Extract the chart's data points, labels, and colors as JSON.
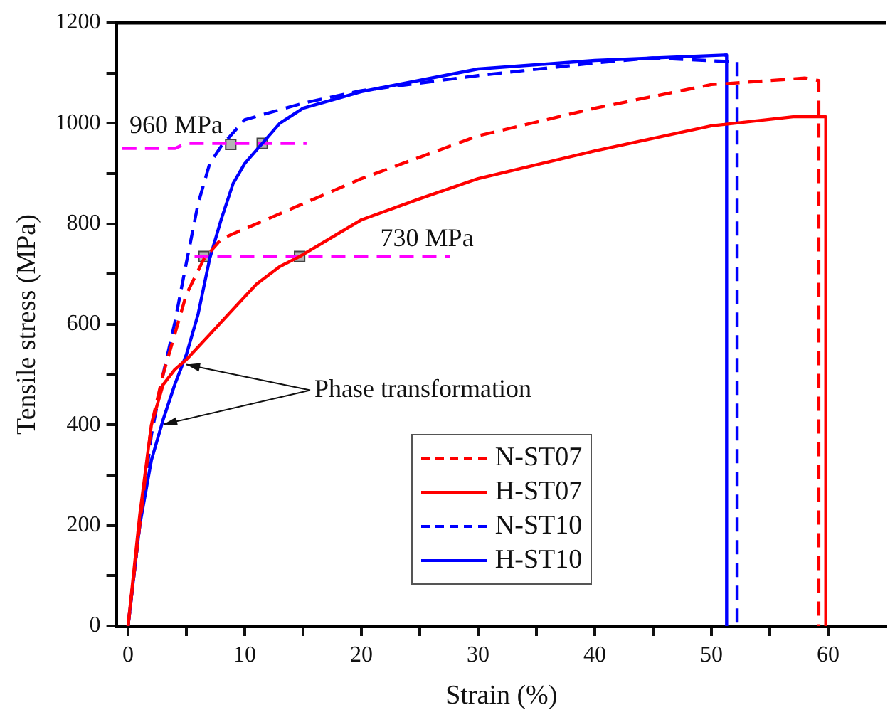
{
  "chart_data": {
    "type": "line",
    "xlabel": "Strain (%)",
    "ylabel": "Tensile stress (MPa)",
    "xlim": [
      -1,
      65
    ],
    "ylim": [
      0,
      1200
    ],
    "xticks": [
      0,
      {
        "value": 5,
        "label": null
      },
      10,
      {
        "value": 15,
        "label": null
      },
      20,
      {
        "value": 25,
        "label": null
      },
      30,
      {
        "value": 35,
        "label": null
      },
      40,
      {
        "value": 45,
        "label": null
      },
      50,
      {
        "value": 55,
        "label": null
      },
      60
    ],
    "yticks": [
      0,
      {
        "value": 100,
        "label": null
      },
      200,
      {
        "value": 300,
        "label": null
      },
      400,
      {
        "value": 500,
        "label": null
      },
      600,
      {
        "value": 700,
        "label": null
      },
      800,
      {
        "value": 900,
        "label": null
      },
      1000,
      {
        "value": 1100,
        "label": null
      },
      1200
    ],
    "grid": false,
    "legend": "bottom",
    "marker": "none",
    "series": [
      {
        "name": "N-ST07",
        "color": "#ff0000",
        "line_style": "dashed",
        "x": [
          0,
          1,
          2,
          3,
          4,
          5,
          6.5,
          8,
          10,
          15,
          20,
          30,
          40,
          50,
          55,
          58,
          59.2,
          59.2
        ],
        "values": [
          0,
          200,
          400,
          500,
          580,
          660,
          730,
          770,
          790,
          840,
          890,
          975,
          1030,
          1077,
          1085,
          1090,
          1085,
          0
        ]
      },
      {
        "name": "H-ST07",
        "color": "#ff0000",
        "line_style": "solid",
        "x": [
          0,
          1,
          2,
          3,
          4,
          5,
          7,
          9,
          11,
          13,
          14.7,
          20,
          25,
          30,
          40,
          50,
          57,
          59.8,
          59.8
        ],
        "values": [
          0,
          220,
          400,
          480,
          510,
          530,
          580,
          630,
          680,
          715,
          735,
          808,
          850,
          890,
          945,
          995,
          1013,
          1013,
          0
        ]
      },
      {
        "name": "N-ST10",
        "color": "#0000ff",
        "line_style": "dashed",
        "x": [
          0,
          1,
          2,
          3,
          4,
          5,
          6,
          7,
          8,
          10,
          15,
          20,
          30,
          40,
          45,
          52.2,
          52.2
        ],
        "values": [
          0,
          200,
          380,
          500,
          603,
          723,
          840,
          920,
          955,
          1007,
          1040,
          1065,
          1095,
          1120,
          1130,
          1122,
          0
        ]
      },
      {
        "name": "H-ST10",
        "color": "#0000ff",
        "line_style": "solid",
        "x": [
          0,
          1,
          2,
          3,
          4,
          5,
          6,
          7,
          8,
          9,
          10,
          11.5,
          13,
          15,
          20,
          30,
          40,
          51.3,
          51.3
        ],
        "values": [
          0,
          200,
          330,
          410,
          480,
          540,
          620,
          731,
          810,
          880,
          920,
          960,
          1000,
          1030,
          1063,
          1108,
          1125,
          1136,
          0
        ]
      },
      {
        "type": "line",
        "color": "#ff00ff",
        "line_style": "dashed",
        "x": [
          -0.5,
          4,
          5,
          15.3
        ],
        "values": [
          950,
          950,
          960,
          960
        ]
      },
      {
        "type": "line",
        "color": "#ff00ff",
        "line_style": "dashed",
        "x": [
          5.7,
          27.6
        ],
        "values": [
          735,
          735
        ]
      },
      {
        "type": "scatter",
        "color": "#b4b4b4",
        "marker": "square",
        "x": [
          8.8,
          11.5,
          6.5,
          14.7
        ],
        "values": [
          958,
          960,
          735,
          735
        ]
      }
    ],
    "annotations": [
      {
        "text": "960 MPa",
        "x": 0,
        "y": 960
      },
      {
        "text": "730 MPa",
        "x": 21.5,
        "y": 735
      },
      {
        "text": "Phase transformation",
        "x": 5,
        "y": 520
      }
    ]
  }
}
